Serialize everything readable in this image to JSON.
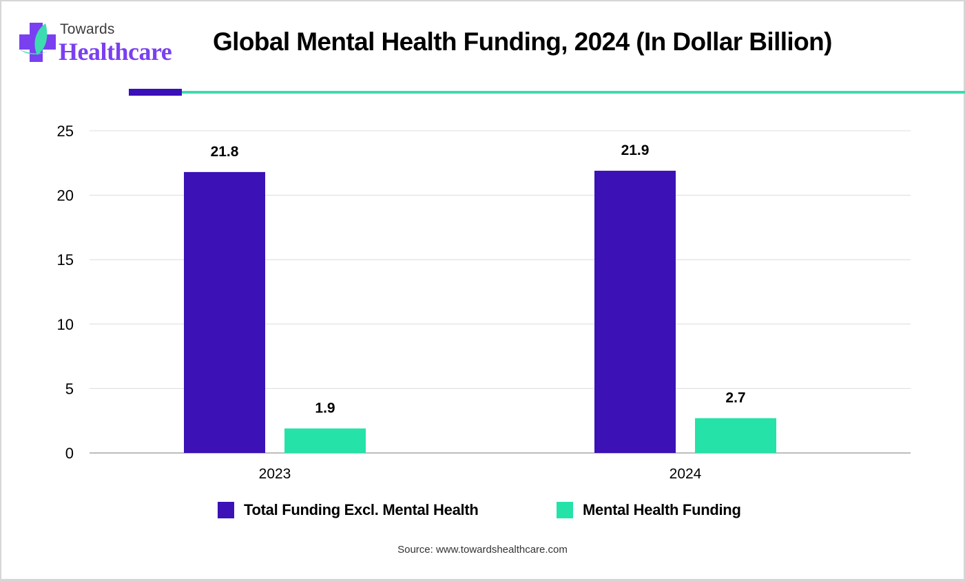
{
  "logo": {
    "line1": "Towards",
    "line2": "Healthcare",
    "icon": "medical-cross-leaf-icon",
    "colors": {
      "cross": "#7a3ff0",
      "leaf": "#3ddbb0"
    }
  },
  "header": {
    "title": "Global Mental Health Funding, 2024 (In Dollar Billion)"
  },
  "colors": {
    "series1": "#3c11b6",
    "series2": "#25e2a8",
    "accent_purple": "#3a10b8",
    "accent_teal": "#3ddbb0",
    "grid": "#dcdcdc",
    "axis": "#a6a6a6"
  },
  "chart_data": {
    "type": "bar",
    "title": "Global Mental Health Funding, 2024 (In Dollar Billion)",
    "xlabel": "",
    "ylabel": "",
    "categories": [
      "2023",
      "2024"
    ],
    "series": [
      {
        "name": "Total Funding Excl. Mental Health",
        "values": [
          21.8,
          21.9
        ],
        "labels": [
          "21.8",
          "21.9"
        ]
      },
      {
        "name": "Mental Health Funding",
        "values": [
          1.9,
          2.7
        ],
        "labels": [
          "1.9",
          "2.7"
        ]
      }
    ],
    "ylim": [
      0,
      25
    ],
    "yticks": [
      0,
      5,
      10,
      15,
      20,
      25
    ],
    "ytick_labels": [
      "0",
      "5",
      "10",
      "15",
      "20",
      "25"
    ],
    "grid": true,
    "legend_placement": "bottom"
  },
  "legend": {
    "items": [
      {
        "label": "Total Funding Excl. Mental Health"
      },
      {
        "label": "Mental Health Funding"
      }
    ]
  },
  "footer": {
    "source": "Source: www.towardshealthcare.com"
  }
}
